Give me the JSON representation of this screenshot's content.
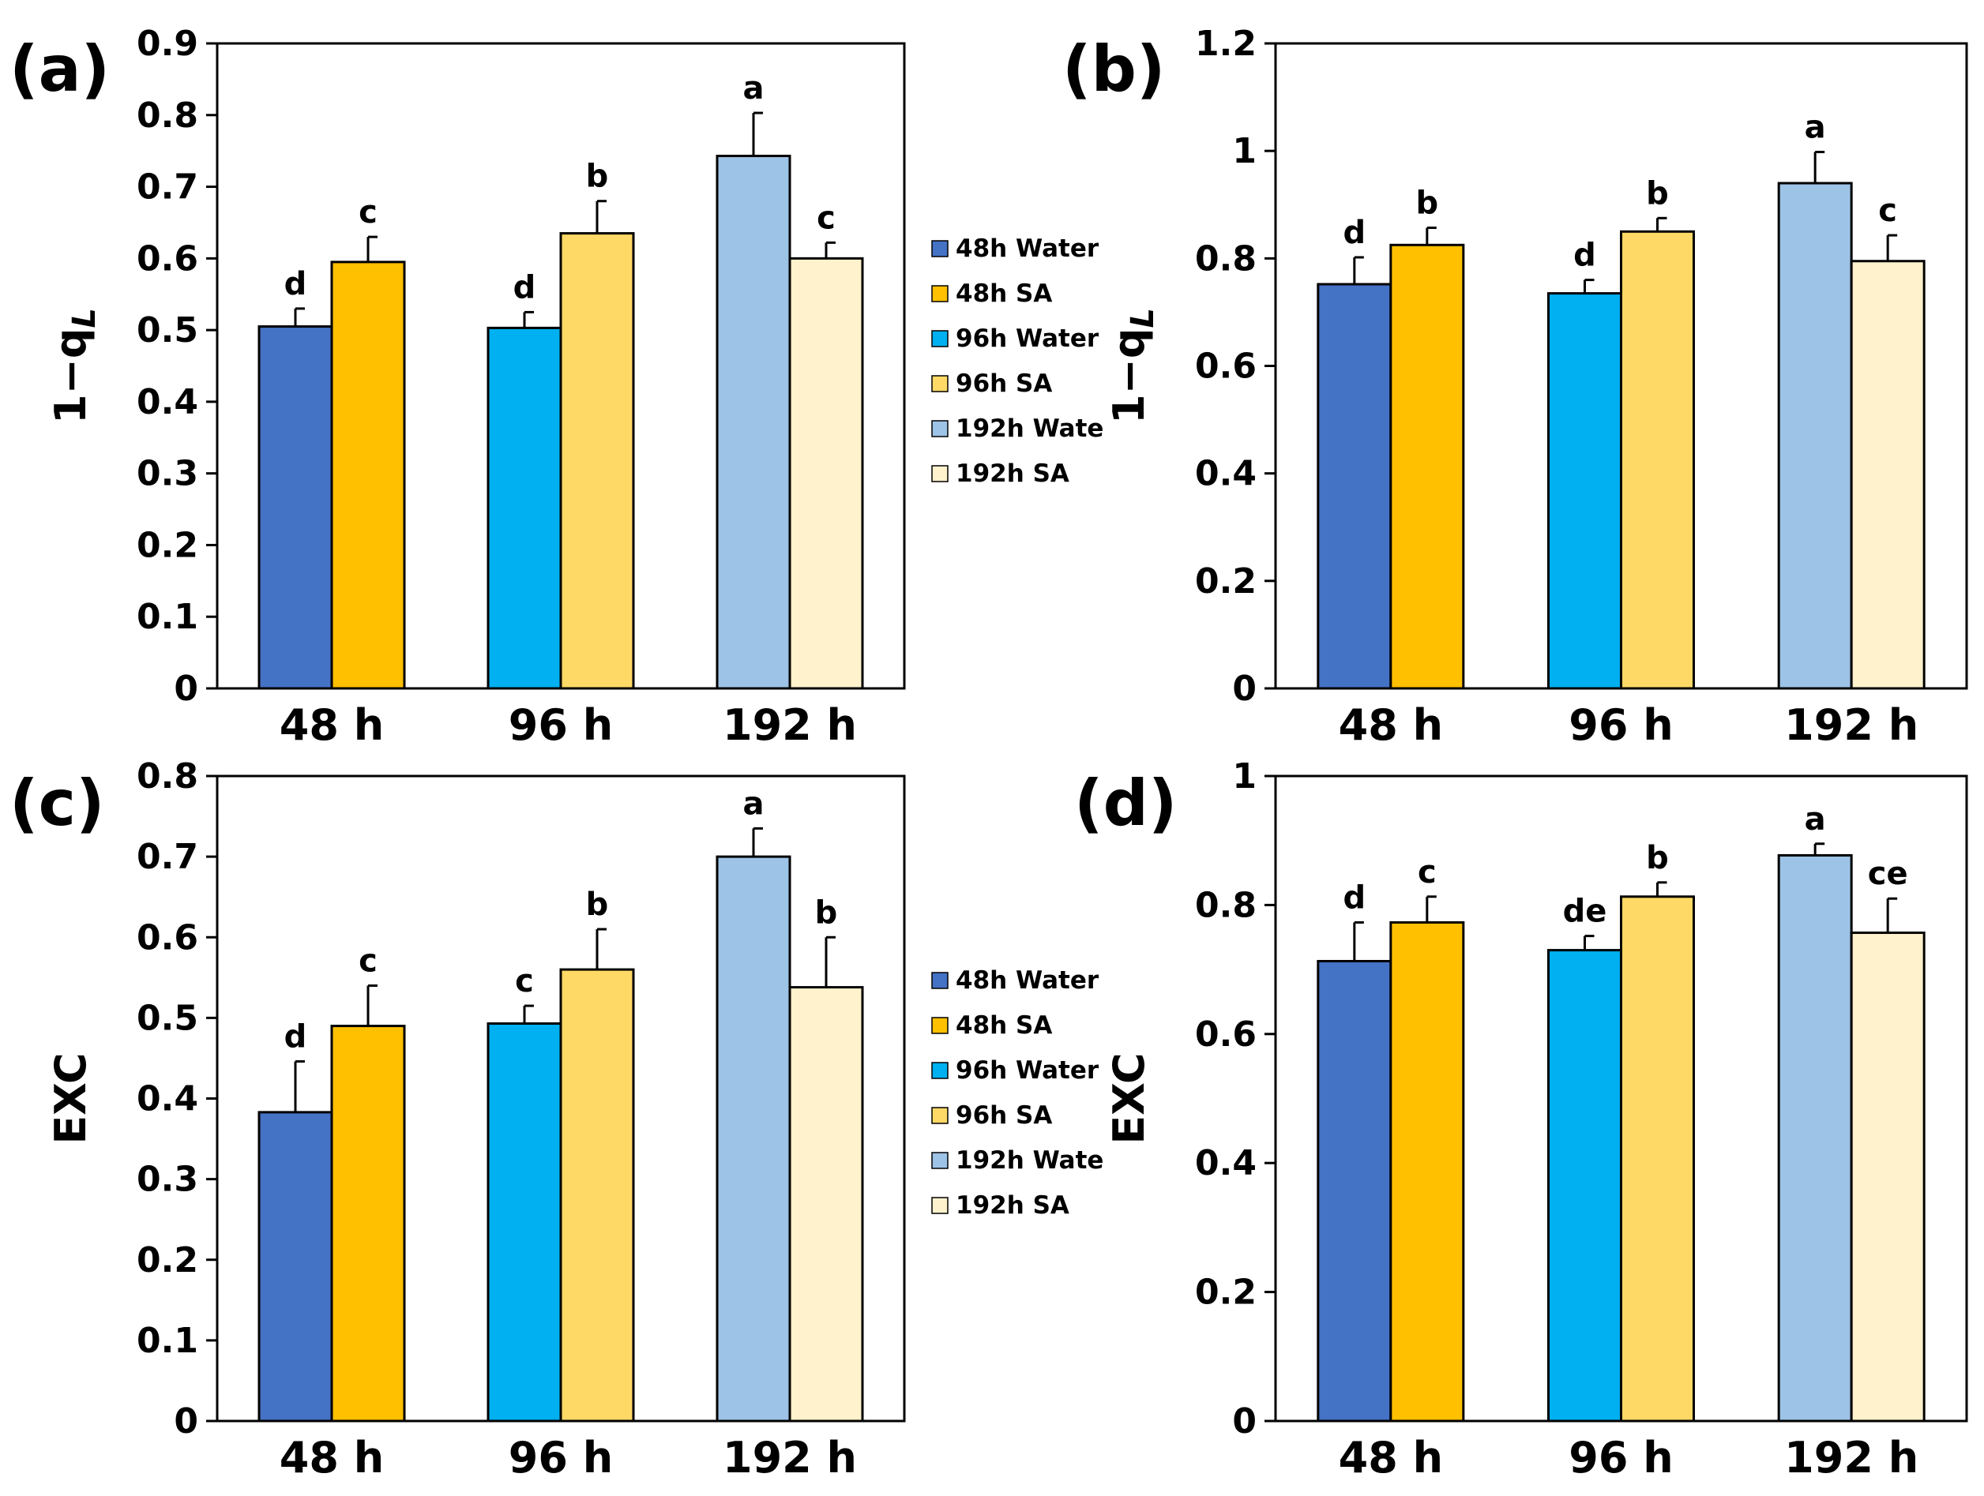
{
  "chart_data": [
    {
      "panel_label": "(a)",
      "type": "bar",
      "ylabel": "1−q",
      "ylabel_sub": "L",
      "ylim": [
        0,
        0.9
      ],
      "yticks": [
        "0",
        "0.1",
        "0.2",
        "0.3",
        "0.4",
        "0.5",
        "0.6",
        "0.7",
        "0.8",
        "0.9"
      ],
      "categories": [
        "48 h",
        "96 h",
        "192 h"
      ],
      "bars": [
        {
          "series": 0,
          "value": 0.505,
          "err": 0.025,
          "letter": "d"
        },
        {
          "series": 1,
          "value": 0.595,
          "err": 0.035,
          "letter": "c"
        },
        {
          "series": 2,
          "value": 0.503,
          "err": 0.022,
          "letter": "d"
        },
        {
          "series": 3,
          "value": 0.635,
          "err": 0.045,
          "letter": "b"
        },
        {
          "series": 4,
          "value": 0.743,
          "err": 0.06,
          "letter": "a"
        },
        {
          "series": 5,
          "value": 0.6,
          "err": 0.022,
          "letter": "c"
        }
      ]
    },
    {
      "panel_label": "(b)",
      "type": "bar",
      "ylabel": "1−q",
      "ylabel_sub": "L",
      "ylim": [
        0,
        1.2
      ],
      "yticks": [
        "0",
        "0.2",
        "0.4",
        "0.6",
        "0.8",
        "1",
        "1.2"
      ],
      "categories": [
        "48 h",
        "96 h",
        "192 h"
      ],
      "bars": [
        {
          "series": 0,
          "value": 0.752,
          "err": 0.05,
          "letter": "d"
        },
        {
          "series": 1,
          "value": 0.825,
          "err": 0.032,
          "letter": "b"
        },
        {
          "series": 2,
          "value": 0.735,
          "err": 0.025,
          "letter": "d"
        },
        {
          "series": 3,
          "value": 0.85,
          "err": 0.025,
          "letter": "b"
        },
        {
          "series": 4,
          "value": 0.94,
          "err": 0.058,
          "letter": "a"
        },
        {
          "series": 5,
          "value": 0.795,
          "err": 0.048,
          "letter": "c"
        }
      ]
    },
    {
      "panel_label": "(c)",
      "type": "bar",
      "ylabel": "EXC",
      "ylabel_sub": "",
      "ylim": [
        0,
        0.8
      ],
      "yticks": [
        "0",
        "0.1",
        "0.2",
        "0.3",
        "0.4",
        "0.5",
        "0.6",
        "0.7",
        "0.8"
      ],
      "categories": [
        "48 h",
        "96 h",
        "192 h"
      ],
      "bars": [
        {
          "series": 0,
          "value": 0.383,
          "err": 0.063,
          "letter": "d"
        },
        {
          "series": 1,
          "value": 0.49,
          "err": 0.05,
          "letter": "c"
        },
        {
          "series": 2,
          "value": 0.493,
          "err": 0.022,
          "letter": "c"
        },
        {
          "series": 3,
          "value": 0.56,
          "err": 0.05,
          "letter": "b"
        },
        {
          "series": 4,
          "value": 0.7,
          "err": 0.035,
          "letter": "a"
        },
        {
          "series": 5,
          "value": 0.538,
          "err": 0.062,
          "letter": "b"
        }
      ]
    },
    {
      "panel_label": "(d)",
      "type": "bar",
      "ylabel": "EXC",
      "ylabel_sub": "",
      "ylim": [
        0,
        1
      ],
      "yticks": [
        "0",
        "0.2",
        "0.4",
        "0.6",
        "0.8",
        "1"
      ],
      "categories": [
        "48 h",
        "96 h",
        "192 h"
      ],
      "bars": [
        {
          "series": 0,
          "value": 0.713,
          "err": 0.06,
          "letter": "d"
        },
        {
          "series": 1,
          "value": 0.773,
          "err": 0.04,
          "letter": "c"
        },
        {
          "series": 2,
          "value": 0.73,
          "err": 0.022,
          "letter": "de"
        },
        {
          "series": 3,
          "value": 0.813,
          "err": 0.022,
          "letter": "b"
        },
        {
          "series": 4,
          "value": 0.877,
          "err": 0.018,
          "letter": "a"
        },
        {
          "series": 5,
          "value": 0.757,
          "err": 0.053,
          "letter": "ce"
        }
      ]
    }
  ],
  "legend": [
    {
      "label": "48h Water",
      "color": "#4472C4"
    },
    {
      "label": "48h SA",
      "color": "#FFC000"
    },
    {
      "label": "96h Water",
      "color": "#00B0F0"
    },
    {
      "label": "96h SA",
      "color": "#FFD966"
    },
    {
      "label": "192h Wate",
      "color": "#9DC3E6"
    },
    {
      "label": "192h SA",
      "color": "#FFF2CC"
    }
  ]
}
